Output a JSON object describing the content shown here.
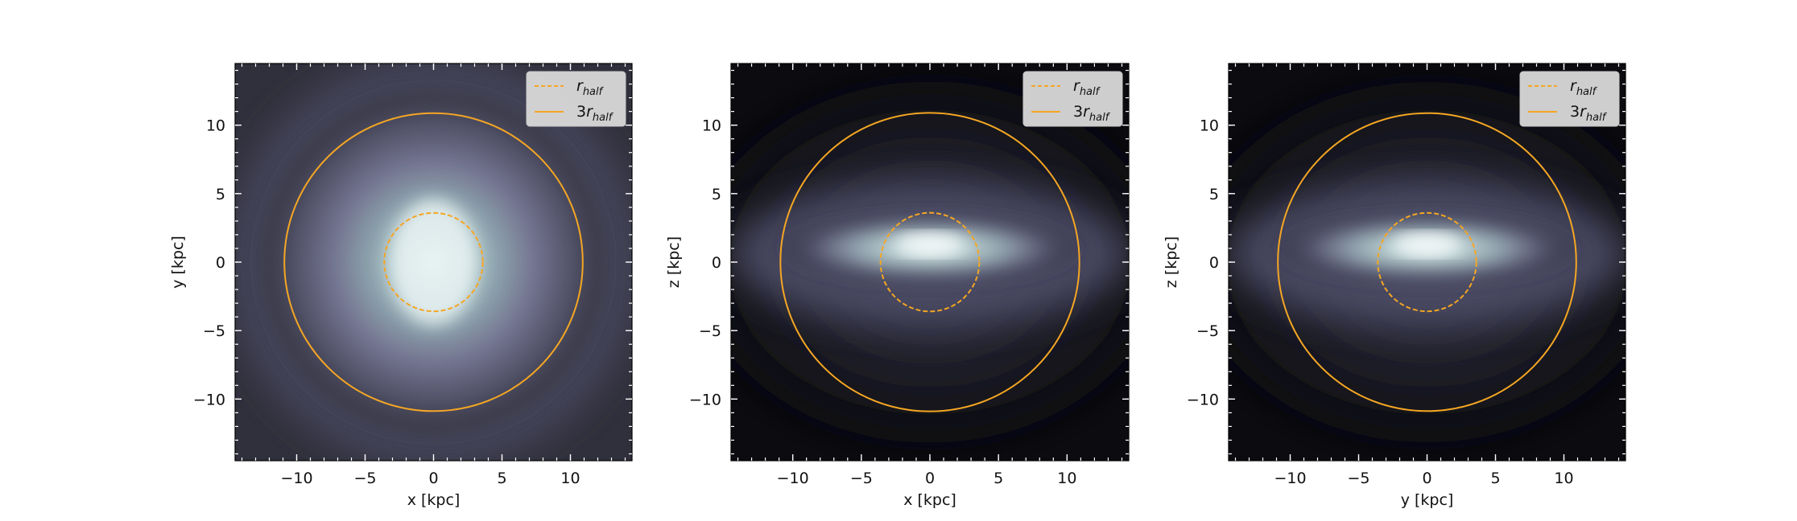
{
  "colors": {
    "circle": "#f5a623",
    "background_dark": "#0b0b10",
    "glow_mid": "#6f6f92",
    "glow_core": "#bdd6d6"
  },
  "chart_data": [
    {
      "type": "heatmap",
      "view": "face-on",
      "xlabel": "x [kpc]",
      "ylabel": "y [kpc]",
      "xlim": [
        -14.5,
        14.5
      ],
      "ylim": [
        -14.5,
        14.5
      ],
      "xticks": [
        -10,
        -5,
        0,
        5,
        10
      ],
      "yticks": [
        -10,
        -5,
        0,
        5,
        10
      ],
      "circles": [
        {
          "name": "r_half",
          "radius": 3.6,
          "style": "dashed"
        },
        {
          "name": "3r_half",
          "radius": 10.9,
          "style": "solid"
        }
      ],
      "legend": {
        "placement": "upper right",
        "entries": [
          {
            "prefix": "",
            "symbol": "r",
            "sub": "half",
            "style": "dashed"
          },
          {
            "prefix": "3",
            "symbol": "r",
            "sub": "half",
            "style": "solid"
          }
        ]
      }
    },
    {
      "type": "heatmap",
      "view": "edge-on",
      "xlabel": "x [kpc]",
      "ylabel": "z [kpc]",
      "xlim": [
        -14.5,
        14.5
      ],
      "ylim": [
        -14.5,
        14.5
      ],
      "xticks": [
        -10,
        -5,
        0,
        5,
        10
      ],
      "yticks": [
        -10,
        -5,
        0,
        5,
        10
      ],
      "circles": [
        {
          "name": "r_half",
          "radius": 3.6,
          "style": "dashed"
        },
        {
          "name": "3r_half",
          "radius": 10.9,
          "style": "solid"
        }
      ],
      "legend": {
        "placement": "upper right",
        "entries": [
          {
            "prefix": "",
            "symbol": "r",
            "sub": "half",
            "style": "dashed"
          },
          {
            "prefix": "3",
            "symbol": "r",
            "sub": "half",
            "style": "solid"
          }
        ]
      }
    },
    {
      "type": "heatmap",
      "view": "edge-on",
      "xlabel": "y [kpc]",
      "ylabel": "z [kpc]",
      "xlim": [
        -14.5,
        14.5
      ],
      "ylim": [
        -14.5,
        14.5
      ],
      "xticks": [
        -10,
        -5,
        0,
        5,
        10
      ],
      "yticks": [
        -10,
        -5,
        0,
        5,
        10
      ],
      "circles": [
        {
          "name": "r_half",
          "radius": 3.6,
          "style": "dashed"
        },
        {
          "name": "3r_half",
          "radius": 10.9,
          "style": "solid"
        }
      ],
      "legend": {
        "placement": "upper right",
        "entries": [
          {
            "prefix": "",
            "symbol": "r",
            "sub": "half",
            "style": "dashed"
          },
          {
            "prefix": "3",
            "symbol": "r",
            "sub": "half",
            "style": "solid"
          }
        ]
      }
    }
  ]
}
